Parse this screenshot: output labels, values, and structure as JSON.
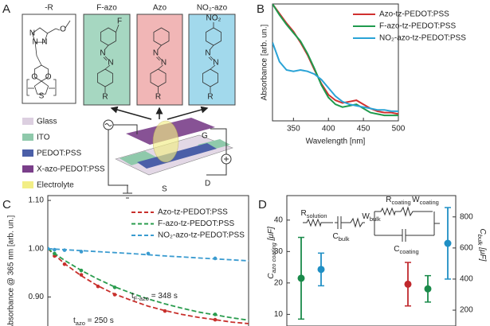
{
  "diagram": {
    "label": "A",
    "molecules": [
      {
        "title": "-R",
        "atoms": [
          "N",
          "N",
          "N",
          "O",
          "O",
          "O",
          "S"
        ]
      },
      {
        "title": "F-azo",
        "atoms": [
          "F",
          "N",
          "N",
          "R"
        ]
      },
      {
        "title": "Azo",
        "atoms": [
          "N",
          "N",
          "R"
        ]
      },
      {
        "title": "NO₂-azo",
        "atoms": [
          "NO₂",
          "N",
          "N",
          "R"
        ]
      }
    ],
    "layers": [
      "Glass",
      "ITO",
      "PEDOT:PSS",
      "X-azo-PEDOT:PSS",
      "Electrolyte"
    ],
    "terminals": [
      "G",
      "S",
      "D"
    ]
  },
  "chart_data": [
    {
      "type": "line",
      "label": "B",
      "xlabel": "Wavelength [nm]",
      "ylabel": "Absorbance [arb. un.]",
      "x": [
        320,
        330,
        340,
        350,
        360,
        370,
        380,
        390,
        400,
        410,
        420,
        430,
        440,
        450,
        460,
        470,
        480,
        490,
        500
      ],
      "xlim": [
        320,
        500
      ],
      "xticks": [
        350,
        400,
        450,
        500
      ],
      "ylim": [
        0.15,
        1.0
      ],
      "legend": "upper right",
      "series": [
        {
          "name": "Azo-tz-PEDOT:PSS",
          "color": "#d0302f",
          "values": [
            1.0,
            0.93,
            0.86,
            0.8,
            0.72,
            0.63,
            0.52,
            0.42,
            0.34,
            0.3,
            0.28,
            0.29,
            0.3,
            0.27,
            0.24,
            0.22,
            0.21,
            0.21,
            0.2
          ]
        },
        {
          "name": "F-azo-tz-PEDOT:PSS",
          "color": "#1f9a4d",
          "values": [
            1.0,
            0.92,
            0.85,
            0.79,
            0.73,
            0.64,
            0.53,
            0.41,
            0.32,
            0.27,
            0.25,
            0.26,
            0.27,
            0.24,
            0.21,
            0.2,
            0.19,
            0.19,
            0.19
          ]
        },
        {
          "name": "NO₂-azo-tz-PEDOT:PSS",
          "color": "#2aa3d6",
          "values": [
            0.72,
            0.58,
            0.52,
            0.51,
            0.52,
            0.51,
            0.49,
            0.45,
            0.39,
            0.33,
            0.29,
            0.27,
            0.26,
            0.25,
            0.24,
            0.23,
            0.23,
            0.22,
            0.22
          ]
        }
      ]
    },
    {
      "type": "scatter",
      "label": "C",
      "ylabel": "Absorbance @ 365 nm [arb. un.]",
      "xlim": [
        0,
        600
      ],
      "ylim": [
        0.84,
        1.11
      ],
      "yticks": [
        {
          "value": 0.9,
          "label": "0.90"
        },
        {
          "value": 1.0,
          "label": "1.00"
        },
        {
          "value": 1.1,
          "label": "1.10"
        }
      ],
      "fit_style": "dashed",
      "legend": "upper right",
      "series": [
        {
          "name": "Azo-tz-PEDOT:PSS",
          "color": "#c8302c",
          "x": [
            0,
            20,
            50,
            100,
            150,
            200,
            350,
            500
          ],
          "values": [
            1.0,
            0.985,
            0.968,
            0.946,
            0.922,
            0.905,
            0.871,
            0.853
          ],
          "fit": {
            "x": [
              0,
              50,
              100,
              150,
              200,
              250,
              300,
              350,
              400,
              450,
              500,
              550,
              600
            ],
            "values": [
              1.0,
              0.969,
              0.944,
              0.923,
              0.906,
              0.893,
              0.881,
              0.872,
              0.864,
              0.858,
              0.853,
              0.848,
              0.845
            ]
          }
        },
        {
          "name": "F-azo-tz-PEDOT:PSS",
          "color": "#2a9c4e",
          "x": [
            0,
            20,
            100,
            200,
            500
          ],
          "values": [
            1.0,
            0.99,
            0.955,
            0.92,
            0.864
          ],
          "fit": {
            "x": [
              0,
              50,
              100,
              150,
              200,
              250,
              300,
              350,
              400,
              450,
              500,
              550,
              600
            ],
            "values": [
              1.0,
              0.976,
              0.955,
              0.937,
              0.921,
              0.908,
              0.896,
              0.886,
              0.877,
              0.869,
              0.863,
              0.857,
              0.852
            ]
          }
        },
        {
          "name": "NO₂-azo-tz-PEDOT:PSS",
          "color": "#3a9bd0",
          "x": [
            0,
            20,
            50,
            100,
            300,
            500
          ],
          "values": [
            1.0,
            0.998,
            0.997,
            0.994,
            0.99,
            0.98
          ],
          "fit": {
            "x": [
              0,
              50,
              100,
              150,
              200,
              250,
              300,
              350,
              400,
              450,
              500,
              550,
              600
            ],
            "values": [
              1.0,
              0.998,
              0.996,
              0.994,
              0.992,
              0.99,
              0.9875,
              0.985,
              0.983,
              0.981,
              0.979,
              0.977,
              0.975
            ]
          }
        }
      ],
      "annotations": [
        {
          "main": "t",
          "sub": "F-azo",
          "rest": " = 348 s"
        },
        {
          "main": "t",
          "sub": "azo",
          "rest": " = 250 s"
        }
      ]
    },
    {
      "type": "errorbar",
      "label": "D",
      "ylabel": {
        "main": "C",
        "sub": "azo coating",
        "rest": " [μF]"
      },
      "y2label": {
        "main": "C",
        "sub": "bulk",
        "rest": " [μF]"
      },
      "ylim": [
        6.3,
        47.8
      ],
      "yticks": [
        10,
        20,
        30,
        40
      ],
      "y2lim": [
        98,
        937
      ],
      "y2ticks": [
        200,
        400,
        600,
        800
      ],
      "groups": [
        {
          "axis": "y",
          "points": [
            {
              "color": "#1a8a4a",
              "value": 21.5,
              "error": 13
            },
            {
              "color": "#1f8fc4",
              "value": 24.3,
              "error": 5.2
            }
          ]
        },
        {
          "axis": "y2",
          "points": [
            {
              "color": "#c0282d",
              "value": 367,
              "error": 140
            },
            {
              "color": "#1a8a4a",
              "value": 337,
              "error": 85
            },
            {
              "color": "#1f8fc4",
              "value": 630,
              "error": 230
            }
          ]
        }
      ],
      "circuit": [
        {
          "main": "R",
          "sub": "solution"
        },
        {
          "main": "W",
          "sub": "bulk"
        },
        {
          "main": "C",
          "sub": "bulk"
        },
        {
          "main": "R",
          "sub": "coating"
        },
        {
          "main": "W",
          "sub": "coating"
        },
        {
          "main": "C",
          "sub": "coating"
        }
      ]
    }
  ]
}
